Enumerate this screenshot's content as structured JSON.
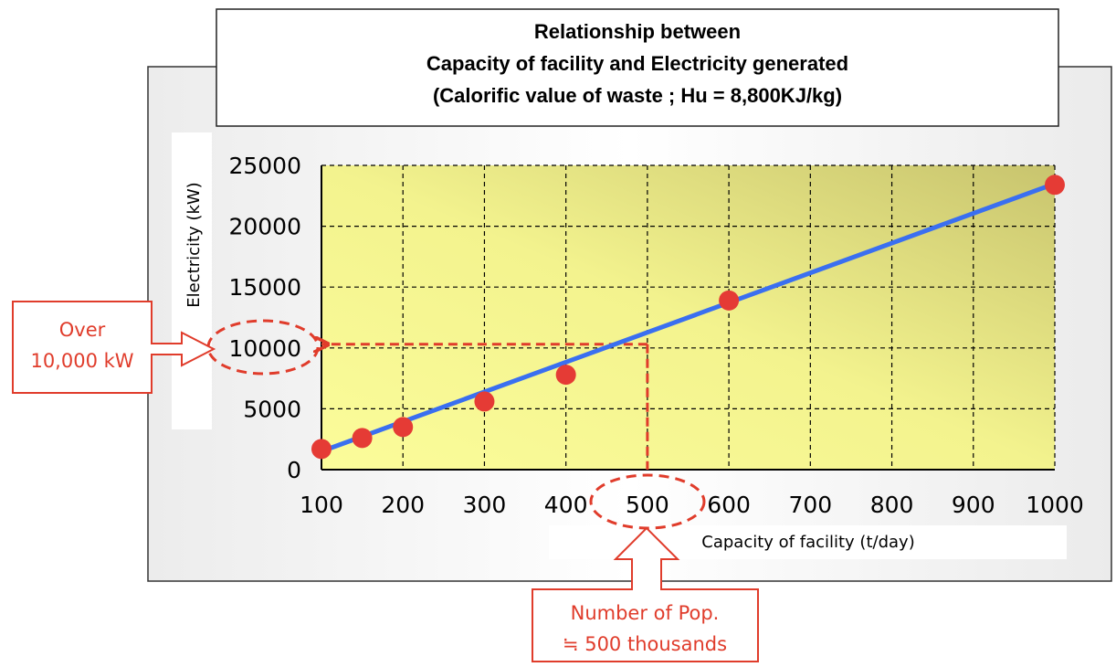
{
  "colors": {
    "line": "#3a6ff0",
    "point": "#e53b35",
    "callout": "#e03c2b",
    "plot_bg_light": "#fbfc9a",
    "plot_bg_dark": "#c8c46e"
  },
  "chart_data": {
    "type": "scatter",
    "title_lines": [
      "Relationship between",
      "Capacity of facility and Electricity generated",
      "(Calorific value of waste ; Hu = 8,800KJ/kg)"
    ],
    "xlabel": "Capacity of facility (t/day)",
    "ylabel": "Electricity (kW)",
    "x_categories": [
      "100",
      "200",
      "300",
      "400",
      "500",
      "600",
      "700",
      "800",
      "900",
      "1000"
    ],
    "y_ticks": [
      "0",
      "5000",
      "10000",
      "15000",
      "20000",
      "25000"
    ],
    "ylim": [
      0,
      25000
    ],
    "grid": true,
    "legend": "none",
    "points": [
      {
        "x": 100,
        "y": 1700
      },
      {
        "x": 150,
        "y": 2600
      },
      {
        "x": 200,
        "y": 3500
      },
      {
        "x": 300,
        "y": 5600
      },
      {
        "x": 400,
        "y": 7800
      },
      {
        "x": 600,
        "y": 13900
      },
      {
        "x": 1000,
        "y": 23400
      }
    ],
    "trend_line": [
      {
        "x": 100,
        "y": 1500
      },
      {
        "x": 1000,
        "y": 23500
      }
    ],
    "annotations": {
      "left_callout": [
        "Over",
        "10,000 kW"
      ],
      "bottom_callout": [
        "Number of Pop.",
        "≒ 500 thousands"
      ],
      "guide_x": 500,
      "guide_y": 10300
    }
  }
}
